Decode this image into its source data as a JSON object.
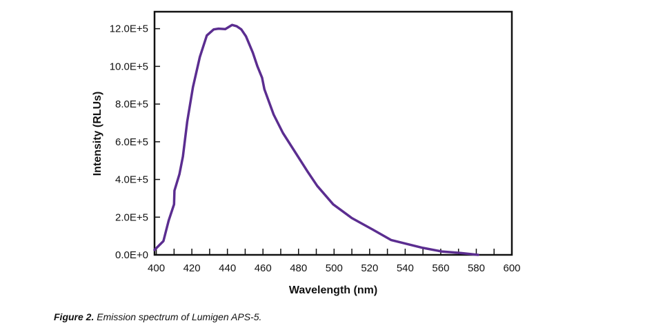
{
  "chart_data": {
    "type": "line",
    "title": "",
    "xlabel": "Wavelength (nm)",
    "ylabel": "Intensity (RLUs)",
    "xlim": [
      399,
      600
    ],
    "ylim": [
      0,
      1290000
    ],
    "x_ticks": [
      400,
      420,
      440,
      460,
      480,
      500,
      520,
      540,
      560,
      580,
      600
    ],
    "x_minor_step": 10,
    "y_ticks": [
      0,
      200000,
      400000,
      600000,
      800000,
      1000000,
      1200000
    ],
    "y_tick_labels": [
      "0.0E+0",
      "2.0E+5",
      "4.0E+5",
      "6.0E+5",
      "8.0E+5",
      "10.0E+5",
      "12.0E+5"
    ],
    "grid": false,
    "line_color": "#5b2d90",
    "series": [
      {
        "x": [
          399,
          404,
          406,
          407,
          410,
          410.2,
          413,
          415,
          417.4,
          420.6,
          424.5,
          428.4,
          432.3,
          435,
          438.8,
          442.6,
          445.2,
          447.8,
          450.4,
          454.3,
          456.9,
          459.5,
          460.8,
          466,
          471.2,
          485.3,
          490.5,
          499.5,
          510,
          521.6,
          532,
          550,
          560.6,
          571,
          581
        ],
        "y": [
          26000,
          73000,
          146000,
          183000,
          268000,
          341000,
          428000,
          523000,
          707000,
          890000,
          1050000,
          1164000,
          1196000,
          1200000,
          1198000,
          1220000,
          1213000,
          1196000,
          1160000,
          1073000,
          1000000,
          940000,
          878000,
          744000,
          647000,
          439000,
          366000,
          268000,
          195000,
          135000,
          79000,
          37000,
          18000,
          10000,
          0
        ]
      }
    ]
  },
  "caption": {
    "label": "Figure 2.",
    "text": " Emission spectrum of Lumigen APS-5."
  }
}
